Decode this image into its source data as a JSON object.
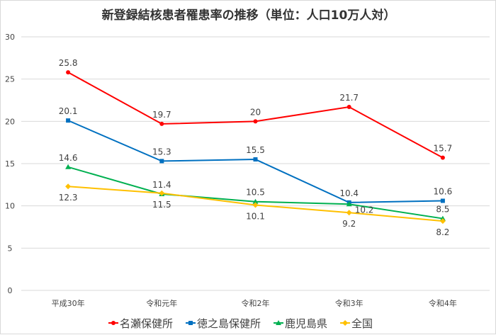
{
  "chart_data": {
    "type": "line",
    "title": "新登録結核患者罹患率の推移（単位：人口10万人対）",
    "xlabel": "",
    "ylabel": "",
    "categories": [
      "平成30年",
      "令和元年",
      "令和2年",
      "令和3年",
      "令和4年"
    ],
    "ylim": [
      0,
      30
    ],
    "yticks": [
      0,
      5,
      10,
      15,
      20,
      25,
      30
    ],
    "grid": true,
    "legend": "bottom",
    "series": [
      {
        "name": "名瀬保健所",
        "color": "#ff0000",
        "marker": "circle",
        "values": [
          25.8,
          19.7,
          20,
          21.7,
          15.7
        ],
        "label_pos": [
          "above",
          "above",
          "above",
          "above",
          "above"
        ]
      },
      {
        "name": "徳之島保健所",
        "color": "#0070c0",
        "marker": "square",
        "values": [
          20.1,
          15.3,
          15.5,
          10.4,
          10.6
        ],
        "label_pos": [
          "above",
          "above",
          "above",
          "above",
          "above"
        ]
      },
      {
        "name": "鹿児島県",
        "color": "#00b050",
        "marker": "triangle",
        "values": [
          14.6,
          11.4,
          10.5,
          10.2,
          8.5
        ],
        "label_pos": [
          "above",
          "above",
          "above",
          "right",
          "above"
        ]
      },
      {
        "name": "全国",
        "color": "#ffc000",
        "marker": "diamond",
        "values": [
          12.3,
          11.5,
          10.1,
          9.2,
          8.2
        ],
        "label_pos": [
          "below",
          "below",
          "below",
          "below",
          "below"
        ]
      }
    ]
  }
}
